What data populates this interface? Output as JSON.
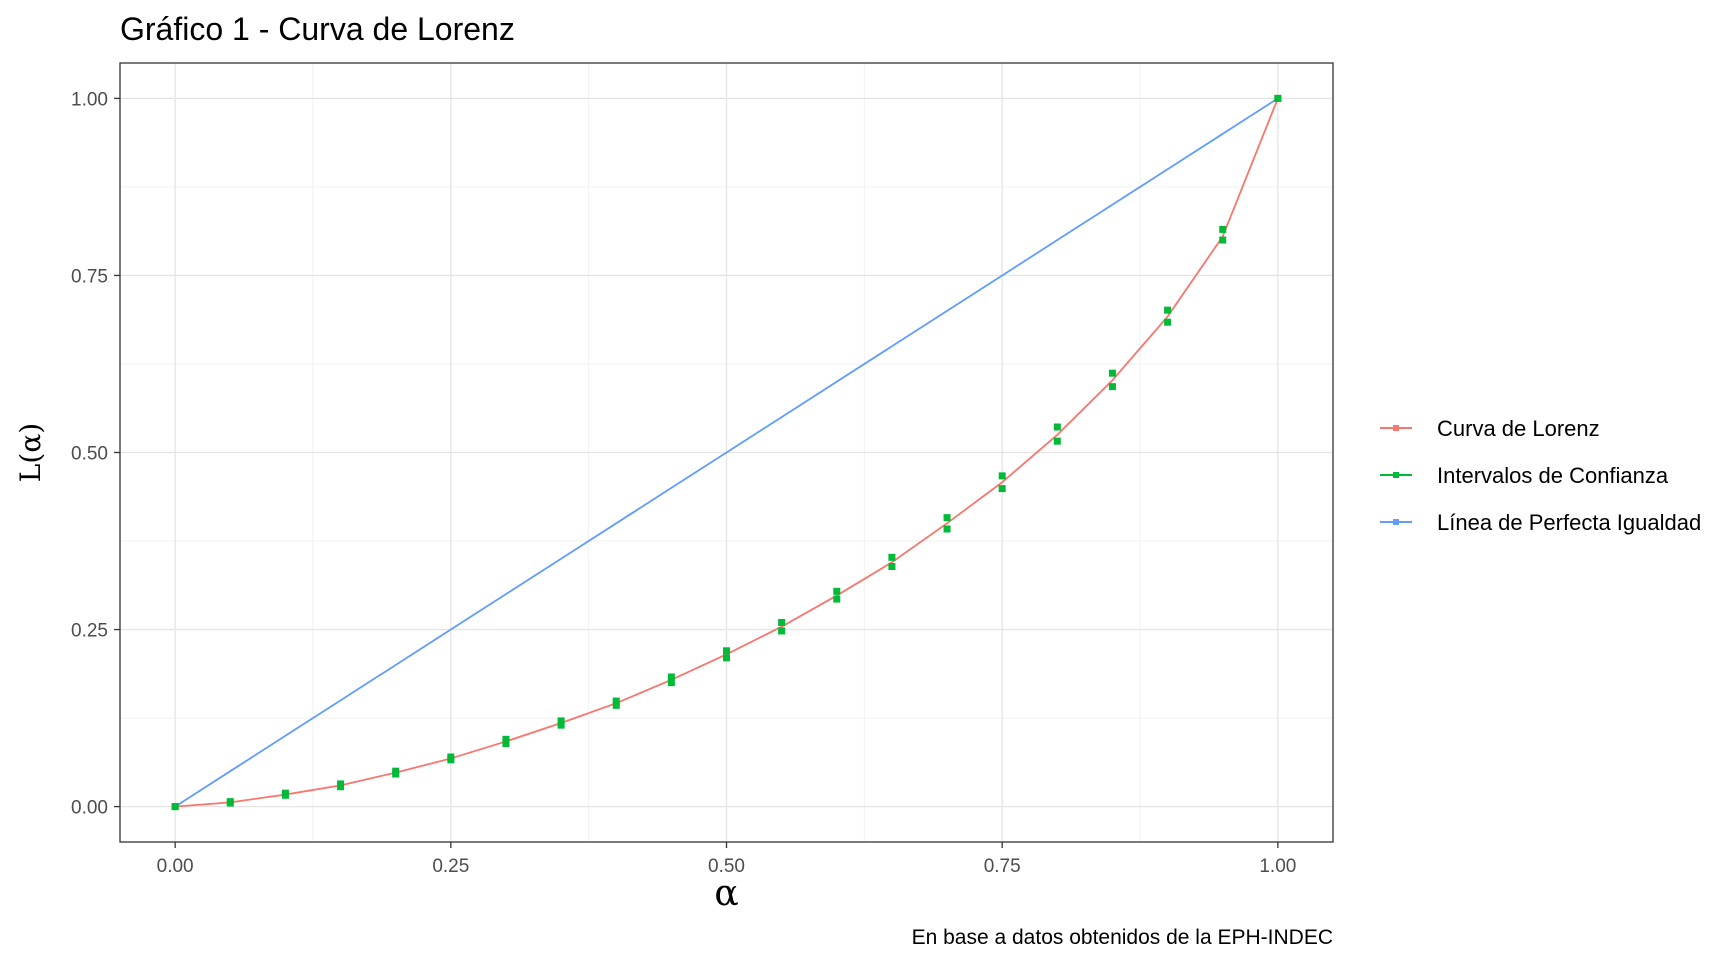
{
  "chart_data": {
    "type": "line",
    "title": "Gráfico 1 - Curva de Lorenz",
    "xlabel": "α",
    "ylabel": "L(α)",
    "caption": "En base a datos obtenidos de la EPH-INDEC",
    "xlim": [
      -0.05,
      1.05
    ],
    "ylim": [
      -0.05,
      1.05
    ],
    "x_ticks": [
      0,
      0.25,
      0.5,
      0.75,
      1
    ],
    "x_tick_labels": [
      "0.00",
      "0.25",
      "0.50",
      "0.75",
      "1.00"
    ],
    "y_ticks": [
      0,
      0.25,
      0.5,
      0.75,
      1
    ],
    "y_tick_labels": [
      "0.00",
      "0.25",
      "0.50",
      "0.75",
      "1.00"
    ],
    "grid": true,
    "legend_position": "right",
    "x": [
      0,
      0.05,
      0.1,
      0.15,
      0.2,
      0.25,
      0.3,
      0.35,
      0.4,
      0.45,
      0.5,
      0.55,
      0.6,
      0.65,
      0.7,
      0.75,
      0.8,
      0.85,
      0.9,
      0.95,
      1
    ],
    "series": [
      {
        "name": "Curva de Lorenz",
        "color": "#f8766d",
        "values": [
          0,
          0.006,
          0.017,
          0.03,
          0.048,
          0.068,
          0.092,
          0.118,
          0.146,
          0.179,
          0.215,
          0.254,
          0.298,
          0.345,
          0.4,
          0.458,
          0.525,
          0.602,
          0.692,
          0.805,
          1.0
        ]
      },
      {
        "name": "Intervalos de Confianza",
        "color": "#00ba38",
        "lower": [
          0,
          0.005,
          0.016,
          0.028,
          0.046,
          0.066,
          0.089,
          0.115,
          0.143,
          0.175,
          0.21,
          0.248,
          0.293,
          0.339,
          0.392,
          0.449,
          0.516,
          0.593,
          0.684,
          0.8,
          1.0
        ],
        "upper": [
          0,
          0.007,
          0.019,
          0.032,
          0.05,
          0.07,
          0.095,
          0.121,
          0.149,
          0.183,
          0.22,
          0.26,
          0.304,
          0.352,
          0.408,
          0.467,
          0.536,
          0.612,
          0.701,
          0.815,
          1.0
        ]
      },
      {
        "name": "Línea de Perfecta Igualdad",
        "color": "#619cff",
        "values": [
          0,
          0.05,
          0.1,
          0.15,
          0.2,
          0.25,
          0.3,
          0.35,
          0.4,
          0.45,
          0.5,
          0.55,
          0.6,
          0.65,
          0.7,
          0.75,
          0.8,
          0.85,
          0.9,
          0.95,
          1.0
        ]
      }
    ]
  }
}
